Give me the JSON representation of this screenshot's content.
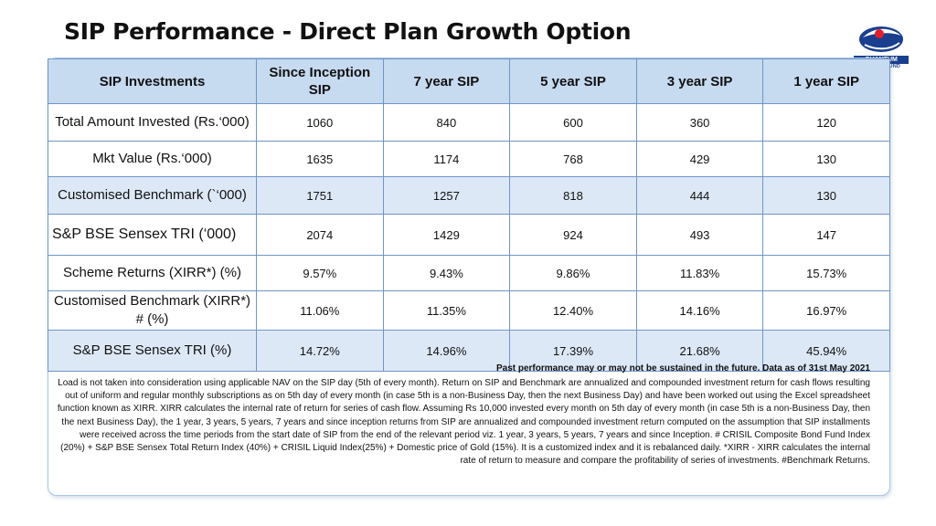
{
  "page": {
    "title": "SIP Performance - Direct Plan Growth Option"
  },
  "logo": {
    "name": "QUANTUM",
    "subtitle": "MUTUAL FUND",
    "colors": {
      "primary": "#1b3f8f",
      "accent": "#e0202a"
    }
  },
  "table": {
    "headers": [
      "SIP Investments",
      "Since Inception SIP",
      "7 year SIP",
      "5 year SIP",
      "3 year SIP",
      "1 year SIP"
    ],
    "rows": [
      {
        "label": "Total Amount Invested (Rs.‘000)",
        "values": [
          "1060",
          "840",
          "600",
          "360",
          "120"
        ]
      },
      {
        "label": "Mkt Value (Rs.‘000)",
        "values": [
          "1635",
          "1174",
          "768",
          "429",
          "130"
        ]
      },
      {
        "label": "Customised Benchmark (`‘000)",
        "values": [
          "1751",
          "1257",
          "818",
          "444",
          "130"
        ]
      },
      {
        "label": "S&P BSE Sensex TRI (‘000)",
        "values": [
          "2074",
          "1429",
          "924",
          "493",
          "147"
        ]
      },
      {
        "label": "Scheme Returns (XIRR*) (%)",
        "values": [
          "9.57%",
          "9.43%",
          "9.86%",
          "11.83%",
          "15.73%"
        ]
      },
      {
        "label": "Customised Benchmark (XIRR*) # (%)",
        "values": [
          "11.06%",
          "11.35%",
          "12.40%",
          "14.16%",
          "16.97%"
        ]
      },
      {
        "label": "S&P BSE Sensex TRI  (%)",
        "values": [
          "14.72%",
          "14.96%",
          "17.39%",
          "21.68%",
          "45.94%"
        ]
      }
    ],
    "colors": {
      "header_bg": "#c6daf0",
      "alt_row_bg": "#dde8f6",
      "border": "#6f95c7"
    }
  },
  "disclaimer": {
    "heading": "Past performance may or may not be sustained in the future. Data as of 31st May 2021",
    "body": "Load is not taken into consideration using applicable NAV on the SIP day (5th of every month). Return on SIP and Benchmark are annualized and compounded investment return for cash flows resulting out of uniform and regular monthly subscriptions as on 5th day of every month (in case 5th is a non-Business Day, then the next Business Day) and have been worked out using the Excel spreadsheet function known as XIRR. XIRR calculates the internal rate of return for series of cash flow. Assuming Rs 10,000 invested every month on 5th day of every month (in case 5th is a non-Business Day, then the next Business Day), the 1 year, 3 years, 5 years, 7 years and since inception returns from SIP are annualized and compounded investment return computed on the assumption that SIP installments were received across the time periods from the start date of SIP from the end of the relevant period viz. 1 year, 3 years, 5 years, 7 years and since Inception. # CRISIL Composite Bond Fund Index (20%) + S&P BSE Sensex Total Return Index (40%) + CRISIL Liquid Index(25%) + Domestic price of Gold (15%). It is a customized index and it is rebalanced daily. *XIRR - XIRR calculates the internal rate of return to measure and compare the profitability of series of investments. #Benchmark Returns."
  }
}
